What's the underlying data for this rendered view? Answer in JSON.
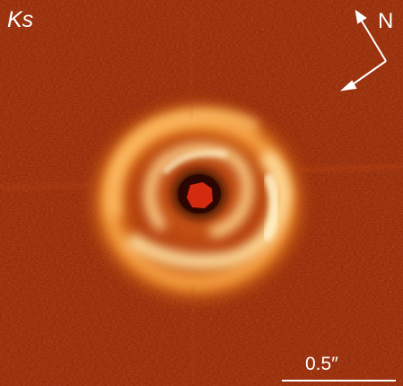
{
  "image": {
    "band_label": "Ks",
    "compass": {
      "north_label": "N",
      "arrow_icon": "compass-arrows-icon"
    },
    "scale_bar_label": "0.5″",
    "colors": {
      "background": "#8a1f06",
      "disk_bright": "#ffd38a",
      "disk_mid": "#f07a18",
      "core": "#d22a10",
      "annotation": "#ffffff"
    }
  }
}
